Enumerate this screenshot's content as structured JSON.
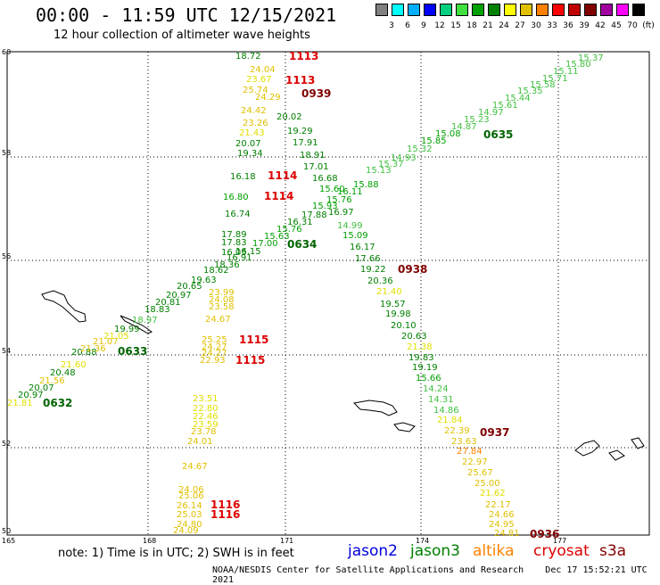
{
  "header": {
    "title": "00:00 - 11:59 UTC 12/15/2021",
    "subtitle": "12 hour collection of altimeter wave heights"
  },
  "legend": {
    "labels": [
      "3",
      "6",
      "9",
      "12",
      "15",
      "18",
      "21",
      "24",
      "27",
      "30",
      "33",
      "36",
      "39",
      "42",
      "45",
      "70"
    ],
    "unit": "(ft)",
    "colors": [
      "#808080",
      "#00ffff",
      "#00b0ff",
      "#0000ff",
      "#00d080",
      "#40e040",
      "#00a000",
      "#008000",
      "#ffff00",
      "#e0c000",
      "#ff8000",
      "#ff0000",
      "#c00000",
      "#800000",
      "#a000a0",
      "#ff00ff",
      "#000000"
    ]
  },
  "axes": {
    "lat_labels": [
      "60",
      "58",
      "56",
      "54",
      "52",
      "50"
    ],
    "lon_labels": [
      "165",
      "168",
      "171",
      "174",
      "177"
    ]
  },
  "tracks": {
    "jason3_1": {
      "time": "0632",
      "color": "#006400"
    },
    "jason3_2": {
      "time": "0633",
      "color": "#006400"
    },
    "jason3_3": {
      "time": "0634",
      "color": "#006400"
    },
    "jason3_4": {
      "time": "0635",
      "color": "#006400"
    },
    "cryosat_1": {
      "time": "1113",
      "color": "#dd0000"
    },
    "cryosat_2": {
      "time": "1113",
      "color": "#dd0000"
    },
    "cryosat_3": {
      "time": "1114",
      "color": "#dd0000"
    },
    "cryosat_4": {
      "time": "1114",
      "color": "#dd0000"
    },
    "cryosat_5": {
      "time": "1115",
      "color": "#dd0000"
    },
    "cryosat_6": {
      "time": "1115",
      "color": "#dd0000"
    },
    "cryosat_7": {
      "time": "1116",
      "color": "#dd0000"
    },
    "cryosat_8": {
      "time": "1116",
      "color": "#dd0000"
    },
    "s3a_1": {
      "time": "0939",
      "color": "#800000"
    },
    "s3a_2": {
      "time": "0938",
      "color": "#800000"
    },
    "s3a_3": {
      "time": "0937",
      "color": "#800000"
    },
    "s3a_4": {
      "time": "0936",
      "color": "#800000"
    }
  },
  "wave_labels": [
    {
      "v": "21.81",
      "c": "#e0e000"
    },
    {
      "v": "20.97",
      "c": "#008000"
    },
    {
      "v": "20.07",
      "c": "#008000"
    },
    {
      "v": "21.56",
      "c": "#e0c000"
    },
    {
      "v": "20.48",
      "c": "#008000"
    },
    {
      "v": "21.60",
      "c": "#e0e000"
    },
    {
      "v": "20.88",
      "c": "#008000"
    },
    {
      "v": "21.36",
      "c": "#e0c000"
    },
    {
      "v": "21.07",
      "c": "#e0c000"
    },
    {
      "v": "21.05",
      "c": "#e0e000"
    },
    {
      "v": "19.99",
      "c": "#008000"
    },
    {
      "v": "18.97",
      "c": "#40c040"
    },
    {
      "v": "18.83",
      "c": "#008000"
    },
    {
      "v": "20.81",
      "c": "#008000"
    },
    {
      "v": "20.97",
      "c": "#008000"
    },
    {
      "v": "20.65",
      "c": "#008000"
    },
    {
      "v": "19.63",
      "c": "#008000"
    },
    {
      "v": "18.62",
      "c": "#008000"
    },
    {
      "v": "18.36",
      "c": "#008000"
    },
    {
      "v": "16.91",
      "c": "#008000"
    },
    {
      "v": "16.15",
      "c": "#008000"
    },
    {
      "v": "16.05",
      "c": "#008000"
    },
    {
      "v": "17.00",
      "c": "#00a000"
    },
    {
      "v": "15.63",
      "c": "#00a000"
    },
    {
      "v": "15.76",
      "c": "#00a000"
    },
    {
      "v": "16.31",
      "c": "#008000"
    },
    {
      "v": "17.88",
      "c": "#008000"
    },
    {
      "v": "15.93",
      "c": "#00a000"
    },
    {
      "v": "15.76",
      "c": "#00a000"
    },
    {
      "v": "16.11",
      "c": "#00a000"
    },
    {
      "v": "15.88",
      "c": "#00a000"
    },
    {
      "v": "15.13",
      "c": "#40c040"
    },
    {
      "v": "15.37",
      "c": "#40c040"
    },
    {
      "v": "14.93",
      "c": "#40c040"
    },
    {
      "v": "15.32",
      "c": "#40c040"
    },
    {
      "v": "15.85",
      "c": "#00a000"
    },
    {
      "v": "15.08",
      "c": "#00a000"
    },
    {
      "v": "14.87",
      "c": "#40c040"
    },
    {
      "v": "15.23",
      "c": "#40c040"
    },
    {
      "v": "14.97",
      "c": "#40c040"
    },
    {
      "v": "15.61",
      "c": "#40c040"
    },
    {
      "v": "15.44",
      "c": "#40c040"
    },
    {
      "v": "15.35",
      "c": "#40c040"
    },
    {
      "v": "15.58",
      "c": "#40c040"
    },
    {
      "v": "15.71",
      "c": "#40c040"
    },
    {
      "v": "15.11",
      "c": "#40c040"
    },
    {
      "v": "15.80",
      "c": "#40c040"
    },
    {
      "v": "15.37",
      "c": "#40c040"
    },
    {
      "v": "18.72",
      "c": "#008000"
    },
    {
      "v": "24.04",
      "c": "#e0c000"
    },
    {
      "v": "23.67",
      "c": "#e0e000"
    },
    {
      "v": "25.74",
      "c": "#e0c000"
    },
    {
      "v": "24.29",
      "c": "#e0c000"
    },
    {
      "v": "24.42",
      "c": "#e0c000"
    },
    {
      "v": "23.26",
      "c": "#e0c000"
    },
    {
      "v": "21.43",
      "c": "#e0e000"
    },
    {
      "v": "20.07",
      "c": "#008000"
    },
    {
      "v": "19.34",
      "c": "#008000"
    },
    {
      "v": "16.18",
      "c": "#008000"
    },
    {
      "v": "16.80",
      "c": "#00a000"
    },
    {
      "v": "16.74",
      "c": "#008000"
    },
    {
      "v": "17.89",
      "c": "#008000"
    },
    {
      "v": "17.83",
      "c": "#008000"
    },
    {
      "v": "20.02",
      "c": "#008000"
    },
    {
      "v": "19.29",
      "c": "#008000"
    },
    {
      "v": "17.91",
      "c": "#008000"
    },
    {
      "v": "18.91",
      "c": "#008000"
    },
    {
      "v": "17.01",
      "c": "#008000"
    },
    {
      "v": "16.68",
      "c": "#008000"
    },
    {
      "v": "15.60",
      "c": "#00a000"
    },
    {
      "v": "16.97",
      "c": "#008000"
    },
    {
      "v": "14.99",
      "c": "#40c040"
    },
    {
      "v": "15.09",
      "c": "#00a000"
    },
    {
      "v": "16.17",
      "c": "#008000"
    },
    {
      "v": "17.66",
      "c": "#008000"
    },
    {
      "v": "19.22",
      "c": "#008000"
    },
    {
      "v": "20.36",
      "c": "#008000"
    },
    {
      "v": "21.40",
      "c": "#e0e000"
    },
    {
      "v": "19.57",
      "c": "#008000"
    },
    {
      "v": "19.98",
      "c": "#008000"
    },
    {
      "v": "20.10",
      "c": "#008000"
    },
    {
      "v": "20.63",
      "c": "#008000"
    },
    {
      "v": "21.38",
      "c": "#e0e000"
    },
    {
      "v": "19.83",
      "c": "#008000"
    },
    {
      "v": "19.19",
      "c": "#008000"
    },
    {
      "v": "15.66",
      "c": "#00a000"
    },
    {
      "v": "14.24",
      "c": "#40c040"
    },
    {
      "v": "14.31",
      "c": "#40c040"
    },
    {
      "v": "14.86",
      "c": "#40c040"
    },
    {
      "v": "21.84",
      "c": "#e0e000"
    },
    {
      "v": "22.39",
      "c": "#e0c000"
    },
    {
      "v": "23.63",
      "c": "#e0c000"
    },
    {
      "v": "27.84",
      "c": "#ff8000"
    },
    {
      "v": "22.97",
      "c": "#e0c000"
    },
    {
      "v": "25.67",
      "c": "#e0c000"
    },
    {
      "v": "25.00",
      "c": "#e0c000"
    },
    {
      "v": "21.62",
      "c": "#e0e000"
    },
    {
      "v": "22.17",
      "c": "#e0c000"
    },
    {
      "v": "24.66",
      "c": "#e0c000"
    },
    {
      "v": "24.95",
      "c": "#e0c000"
    },
    {
      "v": "24.81",
      "c": "#e0c000"
    },
    {
      "v": "23.99",
      "c": "#e0c000"
    },
    {
      "v": "24.08",
      "c": "#e0c000"
    },
    {
      "v": "23.58",
      "c": "#e0c000"
    },
    {
      "v": "24.67",
      "c": "#e0c000"
    },
    {
      "v": "25.25",
      "c": "#e0c000"
    },
    {
      "v": "24.27",
      "c": "#e0c000"
    },
    {
      "v": "24.27",
      "c": "#e0c000"
    },
    {
      "v": "22.93",
      "c": "#e0c000"
    },
    {
      "v": "23.51",
      "c": "#e0e000"
    },
    {
      "v": "22.80",
      "c": "#e0e000"
    },
    {
      "v": "22.46",
      "c": "#e0e000"
    },
    {
      "v": "23.59",
      "c": "#e0e000"
    },
    {
      "v": "23.78",
      "c": "#e0c000"
    },
    {
      "v": "24.01",
      "c": "#e0c000"
    },
    {
      "v": "24.67",
      "c": "#e0c000"
    },
    {
      "v": "24.06",
      "c": "#e0c000"
    },
    {
      "v": "25.06",
      "c": "#e0c000"
    },
    {
      "v": "26.14",
      "c": "#e0c000"
    },
    {
      "v": "25.03",
      "c": "#e0c000"
    },
    {
      "v": "24.80",
      "c": "#e0c000"
    },
    {
      "v": "24.09",
      "c": "#e0c000"
    }
  ],
  "footer": {
    "note": "note: 1) Time is in UTC; 2) SWH is in feet",
    "satellites": [
      {
        "name": "jason2",
        "color": "#0000dd"
      },
      {
        "name": "jason3",
        "color": "#008000"
      },
      {
        "name": "altika",
        "color": "#ff8000"
      },
      {
        "name": "cryosat",
        "color": "#dd0000"
      },
      {
        "name": "s3a",
        "color": "#800000"
      }
    ],
    "credit": "NOAA/NESDIS Center for Satellite Applications and Research",
    "timestamp": "Dec 17 15:52:21 UTC 2021"
  }
}
